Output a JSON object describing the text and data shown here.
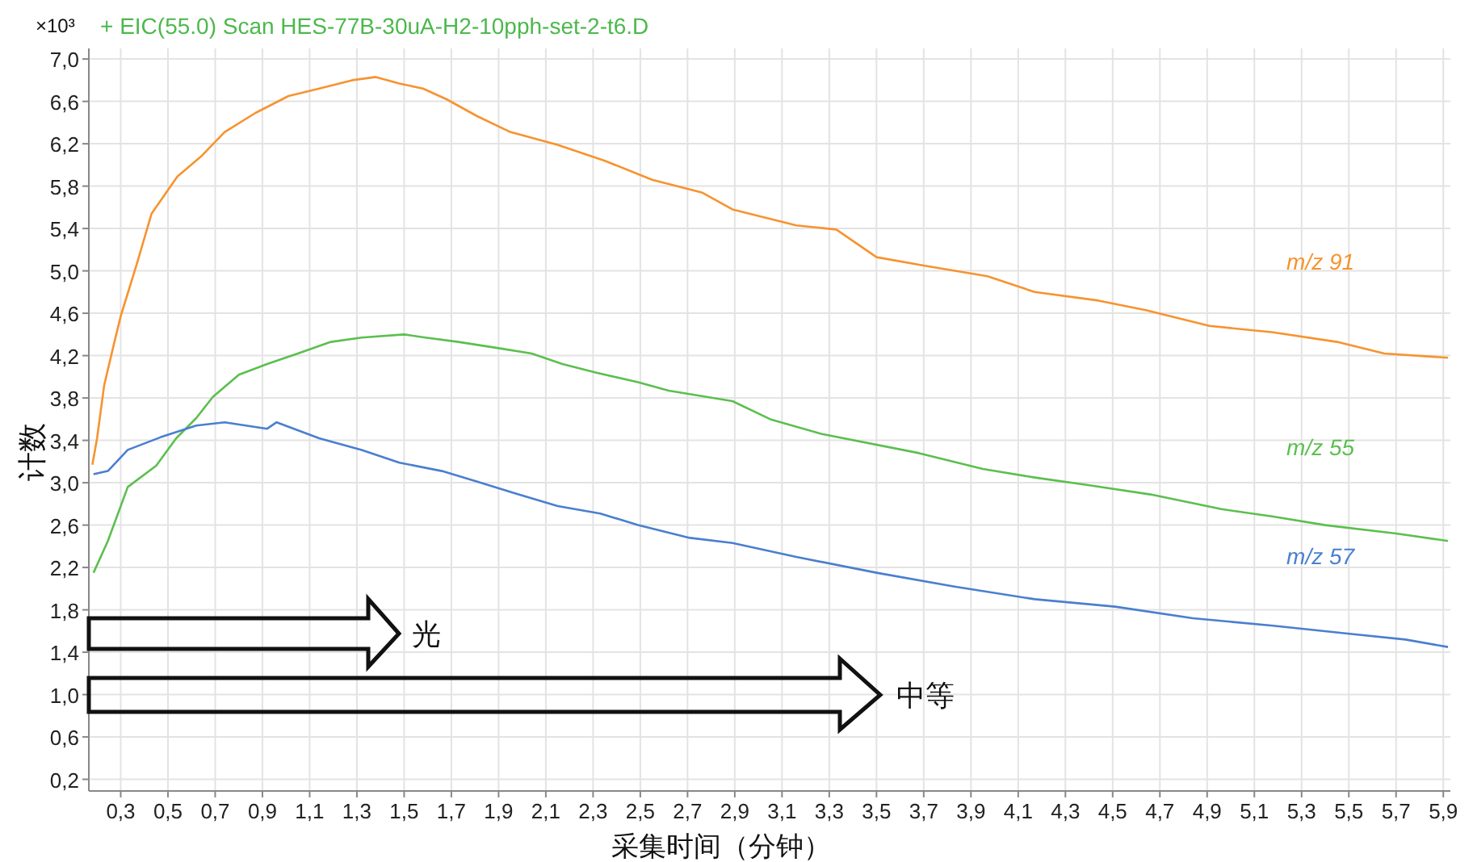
{
  "chart_data": {
    "type": "line",
    "title": "+ EIC(55.0) Scan HES-77B-30uA-H2-10pph-set-2-t6.D",
    "xlabel": "采集时间（分钟）",
    "ylabel": "计数",
    "annotations": [
      "×10³",
      "光",
      "中等"
    ],
    "xlim": [
      0.165,
      5.93
    ],
    "ylim": [
      0.09,
      7.1
    ],
    "grid": true,
    "xticks": [
      {
        "value": 0.3,
        "label": "0,3"
      },
      {
        "value": 0.5,
        "label": "0,5"
      },
      {
        "value": 0.7,
        "label": "0,7"
      },
      {
        "value": 0.9,
        "label": "0,9"
      },
      {
        "value": 1.1,
        "label": "1,1"
      },
      {
        "value": 1.3,
        "label": "1,3"
      },
      {
        "value": 1.5,
        "label": "1,5"
      },
      {
        "value": 1.7,
        "label": "1,7"
      },
      {
        "value": 1.9,
        "label": "1,9"
      },
      {
        "value": 2.1,
        "label": "2,1"
      },
      {
        "value": 2.3,
        "label": "2,3"
      },
      {
        "value": 2.5,
        "label": "2,5"
      },
      {
        "value": 2.7,
        "label": "2,7"
      },
      {
        "value": 2.9,
        "label": "2,9"
      },
      {
        "value": 3.1,
        "label": "3,1"
      },
      {
        "value": 3.3,
        "label": "3,3"
      },
      {
        "value": 3.5,
        "label": "3,5"
      },
      {
        "value": 3.7,
        "label": "3,7"
      },
      {
        "value": 3.9,
        "label": "3,9"
      },
      {
        "value": 4.1,
        "label": "4,1"
      },
      {
        "value": 4.3,
        "label": "4,3"
      },
      {
        "value": 4.5,
        "label": "4,5"
      },
      {
        "value": 4.7,
        "label": "4,7"
      },
      {
        "value": 4.9,
        "label": "4,9"
      },
      {
        "value": 5.1,
        "label": "5,1"
      },
      {
        "value": 5.3,
        "label": "5,3"
      },
      {
        "value": 5.5,
        "label": "5,5"
      },
      {
        "value": 5.7,
        "label": "5,7"
      },
      {
        "value": 5.9,
        "label": "5,9"
      }
    ],
    "yticks": [
      {
        "value": 0.2,
        "label": "0,2"
      },
      {
        "value": 0.6,
        "label": "0,6"
      },
      {
        "value": 1.0,
        "label": "1,0"
      },
      {
        "value": 1.4,
        "label": "1,4"
      },
      {
        "value": 1.8,
        "label": "1,8"
      },
      {
        "value": 2.2,
        "label": "2,2"
      },
      {
        "value": 2.6,
        "label": "2,6"
      },
      {
        "value": 3.0,
        "label": "3,0"
      },
      {
        "value": 3.4,
        "label": "3,4"
      },
      {
        "value": 3.8,
        "label": "3,8"
      },
      {
        "value": 4.2,
        "label": "4,2"
      },
      {
        "value": 4.6,
        "label": "4,6"
      },
      {
        "value": 5.0,
        "label": "5,0"
      },
      {
        "value": 5.4,
        "label": "5,4"
      },
      {
        "value": 5.8,
        "label": "5,8"
      },
      {
        "value": 6.2,
        "label": "6,2"
      },
      {
        "value": 6.6,
        "label": "6,6"
      },
      {
        "value": 7.0,
        "label": "7,0"
      }
    ],
    "series": [
      {
        "name": "m/z 91",
        "color": "#f7932f",
        "x": [
          0.18,
          0.2,
          0.23,
          0.27,
          0.3,
          0.37,
          0.43,
          0.54,
          0.64,
          0.74,
          0.87,
          1.01,
          1.14,
          1.28,
          1.38,
          1.48,
          1.58,
          1.68,
          1.81,
          1.95,
          2.15,
          2.35,
          2.55,
          2.76,
          2.89,
          3.16,
          3.33,
          3.5,
          3.7,
          3.97,
          4.17,
          4.44,
          4.64,
          4.91,
          5.18,
          5.45,
          5.65,
          5.92
        ],
        "values": [
          3.17,
          3.42,
          3.92,
          4.3,
          4.57,
          5.08,
          5.54,
          5.89,
          6.08,
          6.31,
          6.49,
          6.65,
          6.72,
          6.8,
          6.83,
          6.77,
          6.72,
          6.62,
          6.46,
          6.31,
          6.19,
          6.04,
          5.86,
          5.74,
          5.58,
          5.43,
          5.39,
          5.13,
          5.05,
          4.95,
          4.8,
          4.72,
          4.63,
          4.48,
          4.42,
          4.33,
          4.22,
          4.18
        ]
      },
      {
        "name": "m/z 55",
        "color": "#5cbf4f",
        "x": [
          0.185,
          0.246,
          0.33,
          0.45,
          0.535,
          0.62,
          0.69,
          0.8,
          0.92,
          1.05,
          1.19,
          1.32,
          1.5,
          1.59,
          1.73,
          1.9,
          2.04,
          2.17,
          2.31,
          2.49,
          2.62,
          2.89,
          3.05,
          3.27,
          3.68,
          3.95,
          4.17,
          4.39,
          4.66,
          4.96,
          5.18,
          5.4,
          5.7,
          5.92
        ],
        "values": [
          2.15,
          2.45,
          2.96,
          3.16,
          3.42,
          3.61,
          3.81,
          4.02,
          4.12,
          4.22,
          4.33,
          4.37,
          4.4,
          4.37,
          4.33,
          4.27,
          4.22,
          4.12,
          4.04,
          3.95,
          3.87,
          3.77,
          3.6,
          3.46,
          3.28,
          3.13,
          3.05,
          2.98,
          2.89,
          2.75,
          2.68,
          2.6,
          2.52,
          2.45
        ]
      },
      {
        "name": "m/z 57",
        "color": "#4a7fcf",
        "x": [
          0.185,
          0.246,
          0.33,
          0.47,
          0.62,
          0.74,
          0.92,
          0.96,
          1.14,
          1.32,
          1.48,
          1.66,
          1.81,
          1.97,
          2.15,
          2.33,
          2.49,
          2.71,
          2.89,
          3.16,
          3.5,
          3.83,
          4.17,
          4.51,
          4.84,
          5.18,
          5.52,
          5.74,
          5.92
        ],
        "values": [
          3.08,
          3.11,
          3.31,
          3.43,
          3.54,
          3.57,
          3.51,
          3.57,
          3.42,
          3.31,
          3.19,
          3.11,
          3.01,
          2.9,
          2.78,
          2.71,
          2.6,
          2.48,
          2.43,
          2.3,
          2.15,
          2.02,
          1.9,
          1.83,
          1.72,
          1.65,
          1.57,
          1.52,
          1.45
        ]
      }
    ]
  }
}
